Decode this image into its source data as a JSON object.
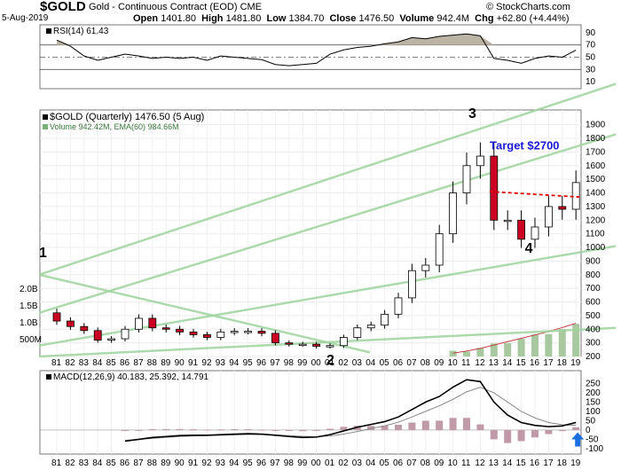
{
  "header": {
    "symbol": "$GOLD",
    "description": "Gold - Continuous Contract (EOD)",
    "exchange": "CME",
    "date": "5-Aug-2019",
    "open_label": "Open",
    "open": "1401.80",
    "high_label": "High",
    "high": "1481.80",
    "low_label": "Low",
    "low": "1384.70",
    "close_label": "Close",
    "close": "1476.50",
    "volume_label": "Volume",
    "volume": "942.4M",
    "chg_label": "Chg",
    "chg": "+62.80 (+4.44%)",
    "watermark": "© StockCharts.com"
  },
  "rsi_panel": {
    "label": "RSI(14) 61.43",
    "ticks": [
      "90",
      "70",
      "50",
      "30",
      "10"
    ]
  },
  "price_panel": {
    "label": "$GOLD (Quarterly) 1476.50 (5 Aug)",
    "volume_label": "Volume 942.42M, EMA(60) 984.66M",
    "target_label": "Target $2700",
    "wave_labels": [
      "1",
      "2",
      "3",
      "4"
    ],
    "y_ticks": [
      "1900",
      "1800",
      "1700",
      "1600",
      "1500",
      "1400",
      "1300",
      "1200",
      "1100",
      "1000",
      "900",
      "800",
      "700",
      "600",
      "500",
      "400",
      "300",
      "200"
    ],
    "volume_ticks": [
      "2.0B",
      "1.5B",
      "1.0B",
      "500M"
    ]
  },
  "macd_panel": {
    "label": "MACD(12,26,9) 40.183, 25.392, 14.791",
    "y_ticks": [
      "250",
      "200",
      "150",
      "100",
      "50",
      "0",
      "-50",
      "-100"
    ]
  },
  "x_ticks": [
    "81",
    "82",
    "83",
    "84",
    "85",
    "86",
    "87",
    "88",
    "89",
    "90",
    "91",
    "92",
    "93",
    "94",
    "95",
    "96",
    "97",
    "98",
    "99",
    "00",
    "01",
    "02",
    "03",
    "04",
    "05",
    "06",
    "07",
    "08",
    "09",
    "10",
    "11",
    "12",
    "13",
    "14",
    "15",
    "16",
    "17",
    "18",
    "19"
  ],
  "colors": {
    "up_candle": "#ffffff",
    "down_candle": "#cc0022",
    "trendline": "#9fd49f",
    "target": "#1a1ad6",
    "resistance": "#e00000",
    "rsi_fill": "#bbb4a4",
    "volume_bar": "#a8c8a0",
    "volume_ema": "#c04040",
    "macd_hist": "#c09aa8",
    "signal_marker": "#1a6fe0"
  },
  "chart_data": {
    "type": "candlestick",
    "title": "$GOLD (Quarterly)",
    "x": [
      "1981",
      "1982",
      "1983",
      "1984",
      "1985",
      "1986",
      "1987",
      "1988",
      "1989",
      "1990",
      "1991",
      "1992",
      "1993",
      "1994",
      "1995",
      "1996",
      "1997",
      "1998",
      "1999",
      "2000",
      "2001",
      "2002",
      "2003",
      "2004",
      "2005",
      "2006",
      "2007",
      "2008",
      "2009",
      "2010",
      "2011",
      "2012",
      "2013",
      "2014",
      "2015",
      "2016",
      "2017",
      "2018",
      "2019"
    ],
    "close": [
      460,
      420,
      390,
      320,
      330,
      400,
      480,
      410,
      400,
      380,
      360,
      340,
      380,
      385,
      385,
      370,
      300,
      290,
      290,
      275,
      280,
      340,
      410,
      430,
      510,
      630,
      830,
      870,
      1100,
      1400,
      1600,
      1670,
      1200,
      1200,
      1060,
      1150,
      1300,
      1280,
      1476
    ],
    "ylim": [
      200,
      1950
    ],
    "rsi": [
      78,
      68,
      52,
      45,
      50,
      55,
      52,
      48,
      50,
      48,
      50,
      45,
      52,
      50,
      48,
      46,
      38,
      36,
      38,
      40,
      55,
      62,
      66,
      68,
      72,
      75,
      82,
      80,
      84,
      86,
      88,
      85,
      48,
      45,
      40,
      48,
      52,
      50,
      61.43
    ],
    "macd": [
      null,
      null,
      null,
      null,
      null,
      -60,
      -50,
      -40,
      -35,
      -30,
      -28,
      -28,
      -25,
      -22,
      -20,
      -22,
      -28,
      -35,
      -40,
      -38,
      -25,
      -5,
      15,
      30,
      45,
      70,
      110,
      150,
      180,
      230,
      270,
      260,
      150,
      80,
      40,
      25,
      18,
      22,
      40.183
    ],
    "signal": [
      null,
      null,
      null,
      null,
      null,
      -55,
      -50,
      -45,
      -40,
      -35,
      -32,
      -30,
      -28,
      -26,
      -24,
      -24,
      -26,
      -30,
      -34,
      -36,
      -32,
      -22,
      -8,
      8,
      22,
      42,
      70,
      100,
      130,
      165,
      205,
      230,
      200,
      150,
      100,
      65,
      40,
      28,
      25.392
    ],
    "volume_ema": [
      null,
      null,
      null,
      null,
      null,
      null,
      null,
      null,
      null,
      null,
      null,
      null,
      null,
      null,
      null,
      null,
      null,
      null,
      null,
      null,
      null,
      null,
      null,
      null,
      null,
      null,
      null,
      null,
      null,
      100,
      160,
      240,
      340,
      440,
      540,
      640,
      740,
      860,
      984.66
    ]
  }
}
